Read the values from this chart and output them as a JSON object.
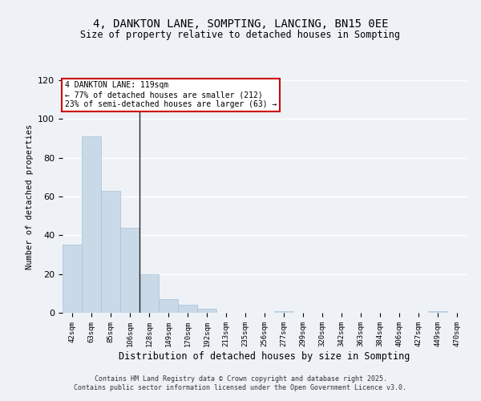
{
  "title": "4, DANKTON LANE, SOMPTING, LANCING, BN15 0EE",
  "subtitle": "Size of property relative to detached houses in Sompting",
  "xlabel": "Distribution of detached houses by size in Sompting",
  "ylabel": "Number of detached properties",
  "bar_labels": [
    "42sqm",
    "63sqm",
    "85sqm",
    "106sqm",
    "128sqm",
    "149sqm",
    "170sqm",
    "192sqm",
    "213sqm",
    "235sqm",
    "256sqm",
    "277sqm",
    "299sqm",
    "320sqm",
    "342sqm",
    "363sqm",
    "384sqm",
    "406sqm",
    "427sqm",
    "449sqm",
    "470sqm"
  ],
  "bar_values": [
    35,
    91,
    63,
    44,
    20,
    7,
    4,
    2,
    0,
    0,
    0,
    1,
    0,
    0,
    0,
    0,
    0,
    0,
    0,
    1,
    0
  ],
  "bar_color_default": "#c9d9e8",
  "bar_color_edge": "#a8c0d4",
  "subject_label": "4 DANKTON LANE: 119sqm",
  "annotation_line1": "← 77% of detached houses are smaller (212)",
  "annotation_line2": "23% of semi-detached houses are larger (63) →",
  "annotation_box_color": "#ffffff",
  "annotation_box_edge": "#cc0000",
  "vline_x_index": 4,
  "ylim": [
    0,
    120
  ],
  "yticks": [
    0,
    20,
    40,
    60,
    80,
    100,
    120
  ],
  "background_color": "#eef2f7",
  "grid_color": "#ffffff",
  "footer_line1": "Contains HM Land Registry data © Crown copyright and database right 2025.",
  "footer_line2": "Contains public sector information licensed under the Open Government Licence v3.0."
}
